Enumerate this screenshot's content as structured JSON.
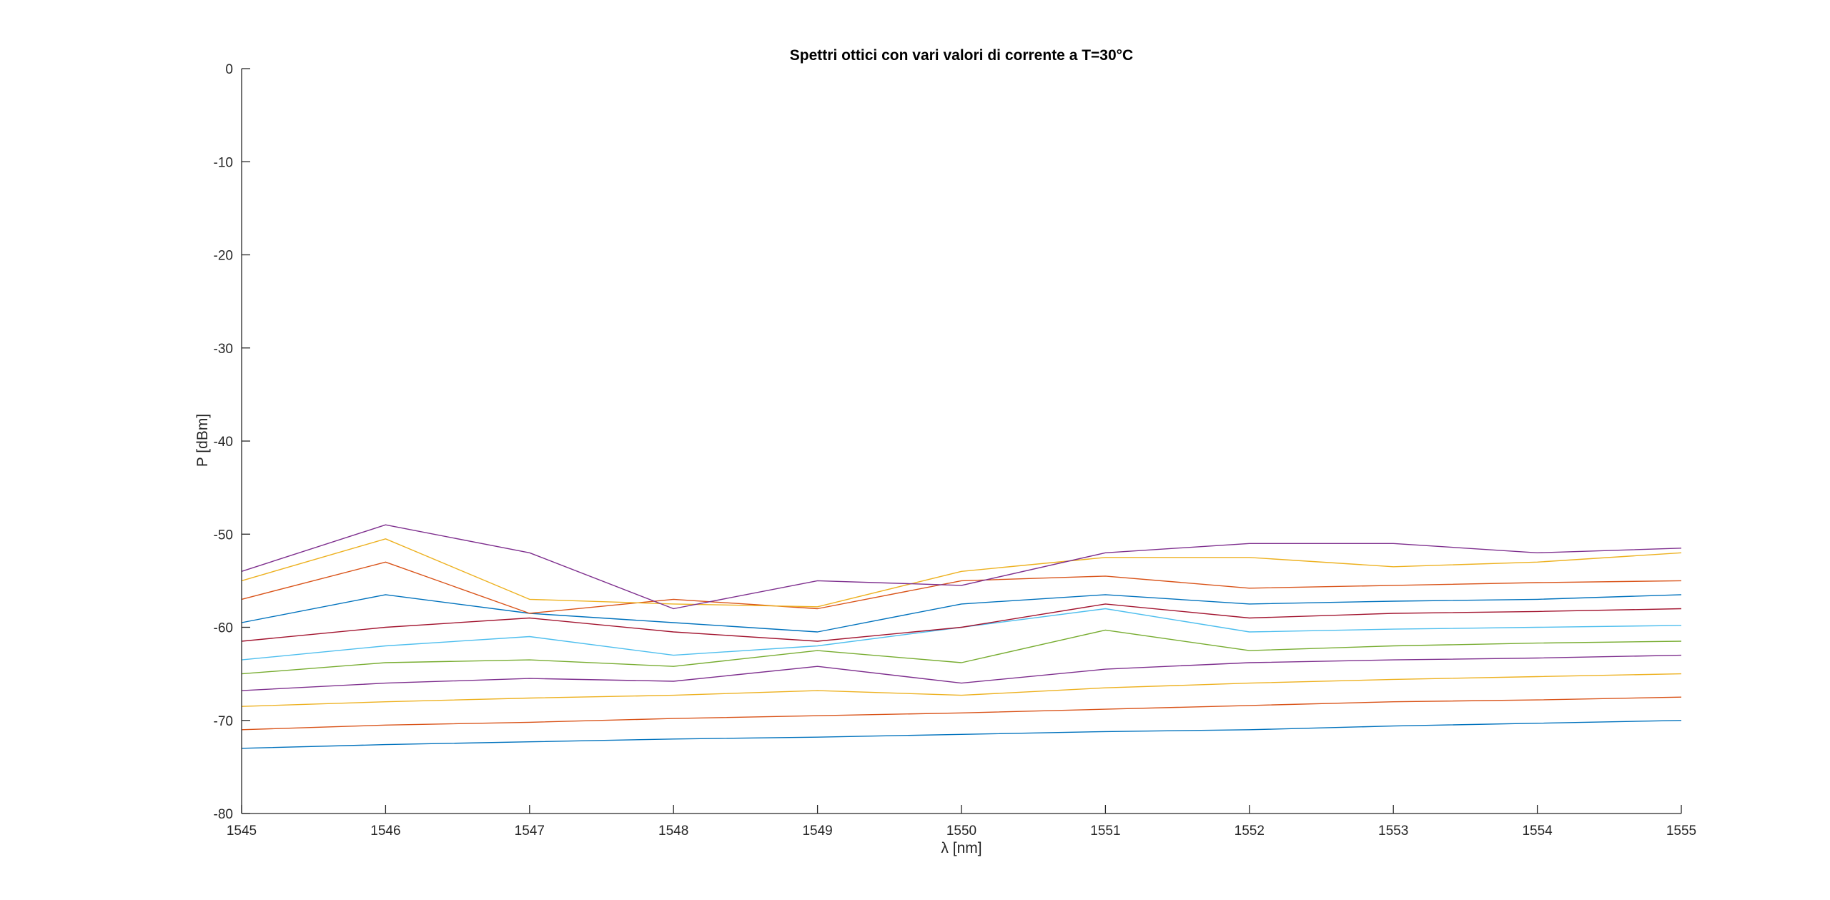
{
  "chart_data": {
    "type": "line",
    "title": "Spettri ottici con vari valori di corrente a T=30°C",
    "xlabel": "λ [nm]",
    "ylabel": "P [dBm]",
    "xlim": [
      1545,
      1555
    ],
    "ylim": [
      -80,
      0
    ],
    "xticks": [
      "1545",
      "1546",
      "1547",
      "1548",
      "1549",
      "1550",
      "1551",
      "1552",
      "1553",
      "1554",
      "1555"
    ],
    "yticks": [
      "0",
      "-10",
      "-20",
      "-30",
      "-40",
      "-50",
      "-60",
      "-70",
      "-80"
    ],
    "grid": false,
    "legend": "none",
    "colors": [
      "#0072BD",
      "#D95319",
      "#EDB120",
      "#7E2F8E",
      "#77AC30",
      "#4DBEEE",
      "#A2142F"
    ],
    "series": [
      {
        "x": [
          1545,
          1546,
          1547,
          1548,
          1549,
          1550,
          1551,
          1552,
          1553,
          1554,
          1555
        ],
        "y": [
          -73,
          -72.6,
          -72.3,
          -72,
          -71.8,
          -71.5,
          -71.2,
          -71,
          -70.6,
          -70.3,
          -70
        ]
      },
      {
        "x": [
          1545,
          1546,
          1547,
          1548,
          1549,
          1550,
          1551,
          1552,
          1553,
          1554,
          1555
        ],
        "y": [
          -71,
          -70.5,
          -70.2,
          -69.8,
          -69.5,
          -69.2,
          -68.8,
          -68.4,
          -68,
          -67.8,
          -67.5
        ]
      },
      {
        "x": [
          1545,
          1546,
          1547,
          1548,
          1549,
          1550,
          1551,
          1552,
          1553,
          1554,
          1555
        ],
        "y": [
          -68.5,
          -68,
          -67.6,
          -67.3,
          -66.8,
          -67.3,
          -66.5,
          -66,
          -65.6,
          -65.3,
          -65
        ]
      },
      {
        "x": [
          1545,
          1546,
          1547,
          1548,
          1549,
          1550,
          1551,
          1552,
          1553,
          1554,
          1555
        ],
        "y": [
          -66.8,
          -66,
          -65.5,
          -65.8,
          -64.2,
          -66,
          -64.5,
          -63.8,
          -63.5,
          -63.3,
          -63
        ]
      },
      {
        "x": [
          1545,
          1546,
          1547,
          1548,
          1549,
          1550,
          1551,
          1552,
          1553,
          1554,
          1555
        ],
        "y": [
          -65,
          -63.8,
          -63.5,
          -64.2,
          -62.5,
          -63.8,
          -60.3,
          -62.5,
          -62,
          -61.7,
          -61.5
        ]
      },
      {
        "x": [
          1545,
          1546,
          1547,
          1548,
          1549,
          1550,
          1551,
          1552,
          1553,
          1554,
          1555
        ],
        "y": [
          -63.5,
          -62,
          -61,
          -63,
          -62,
          -60,
          -58,
          -60.5,
          -60.2,
          -60,
          -59.8
        ]
      },
      {
        "x": [
          1545,
          1546,
          1547,
          1548,
          1549,
          1550,
          1551,
          1552,
          1553,
          1554,
          1555
        ],
        "y": [
          -61.5,
          -60,
          -59,
          -60.5,
          -61.5,
          -60,
          -57.5,
          -59,
          -58.5,
          -58.3,
          -58
        ]
      },
      {
        "x": [
          1545,
          1546,
          1547,
          1548,
          1549,
          1550,
          1551,
          1552,
          1553,
          1554,
          1555
        ],
        "y": [
          -59.5,
          -56.5,
          -58.5,
          -59.5,
          -60.5,
          -57.5,
          -56.5,
          -57.5,
          -57.2,
          -57,
          -56.5
        ]
      },
      {
        "x": [
          1545,
          1546,
          1547,
          1548,
          1549,
          1550,
          1551,
          1552,
          1553,
          1554,
          1555
        ],
        "y": [
          -57,
          -53,
          -58.5,
          -57,
          -58,
          -55,
          -54.5,
          -55.8,
          -55.5,
          -55.2,
          -55
        ]
      },
      {
        "x": [
          1545,
          1546,
          1547,
          1548,
          1549,
          1550,
          1551,
          1552,
          1553,
          1554,
          1555
        ],
        "y": [
          -55,
          -50.5,
          -57,
          -57.5,
          -57.8,
          -54,
          -52.5,
          -52.5,
          -53.5,
          -53,
          -52
        ]
      },
      {
        "x": [
          1545,
          1546,
          1547,
          1548,
          1549,
          1550,
          1551,
          1552,
          1553,
          1554,
          1555
        ],
        "y": [
          -54,
          -49,
          -52,
          -58,
          -55,
          -55.5,
          -52,
          -51,
          -51,
          -52,
          -51.5
        ]
      }
    ]
  }
}
